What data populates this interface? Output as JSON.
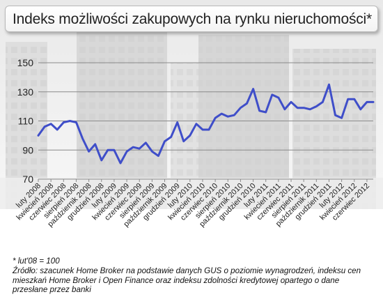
{
  "title": "Indeks możliwości zakupowych na rynku nieruchomości*",
  "footnote": "* lut'08 = 100",
  "source": "Źródło: szacunek Home Broker na podstawie danych GUS o poziomie wynagrodzeń, indeksu cen mieszkań Home Broker i Open Finance oraz indeksu zdolności kredytowej opartego o dane przesłane przez banki",
  "colors": {
    "line": "#3f4ec9",
    "grid": "#8a8a8a",
    "text": "#222222"
  },
  "chart_data": {
    "type": "line",
    "title": "Indeks możliwości zakupowych na rynku nieruchomości*",
    "xlabel": "",
    "ylabel": "",
    "ylim": [
      70,
      150
    ],
    "yticks": [
      70,
      90,
      110,
      130,
      150
    ],
    "grid": true,
    "legend": "none",
    "tick_labels": [
      "luty 2008",
      "kwiecień 2008",
      "czerwiec 2008",
      "sierpień 2008",
      "październik 2008",
      "grudzień 2008",
      "luty 2009",
      "kwiecień 2009",
      "czerwiec 2009",
      "sierpień 2009",
      "październik 2009",
      "grudzień 2009",
      "luty 2010",
      "kwiecień 2010",
      "czerwiec 2010",
      "sierpień 2010",
      "październik 2010",
      "grudzień 2010",
      "luty 2011",
      "kwiecień 2011",
      "czerwiec 2011",
      "sierpień 2011",
      "październik 2011",
      "grudzień 2011",
      "luty 2012",
      "kwiecień 2012",
      "czerwiec 2012"
    ],
    "x": [
      "2008-02",
      "2008-03",
      "2008-04",
      "2008-05",
      "2008-06",
      "2008-07",
      "2008-08",
      "2008-09",
      "2008-10",
      "2008-11",
      "2008-12",
      "2009-01",
      "2009-02",
      "2009-03",
      "2009-04",
      "2009-05",
      "2009-06",
      "2009-07",
      "2009-08",
      "2009-09",
      "2009-10",
      "2009-11",
      "2009-12",
      "2010-01",
      "2010-02",
      "2010-03",
      "2010-04",
      "2010-05",
      "2010-06",
      "2010-07",
      "2010-08",
      "2010-09",
      "2010-10",
      "2010-11",
      "2010-12",
      "2011-01",
      "2011-02",
      "2011-03",
      "2011-04",
      "2011-05",
      "2011-06",
      "2011-07",
      "2011-08",
      "2011-09",
      "2011-10",
      "2011-11",
      "2011-12",
      "2012-01",
      "2012-02",
      "2012-03",
      "2012-04",
      "2012-05",
      "2012-06",
      "2012-07"
    ],
    "series": [
      {
        "values": [
          100,
          106,
          108,
          104,
          109,
          110,
          109,
          98,
          89,
          94,
          83,
          90,
          90,
          81,
          89,
          92,
          91,
          95,
          89,
          86,
          96,
          99,
          109,
          96,
          100,
          108,
          104,
          104,
          112,
          115,
          113,
          114,
          119,
          122,
          132,
          117,
          116,
          128,
          126,
          118,
          123,
          119,
          119,
          118,
          120,
          123,
          135,
          114,
          112,
          125,
          125,
          118,
          123,
          123
        ]
      }
    ]
  }
}
